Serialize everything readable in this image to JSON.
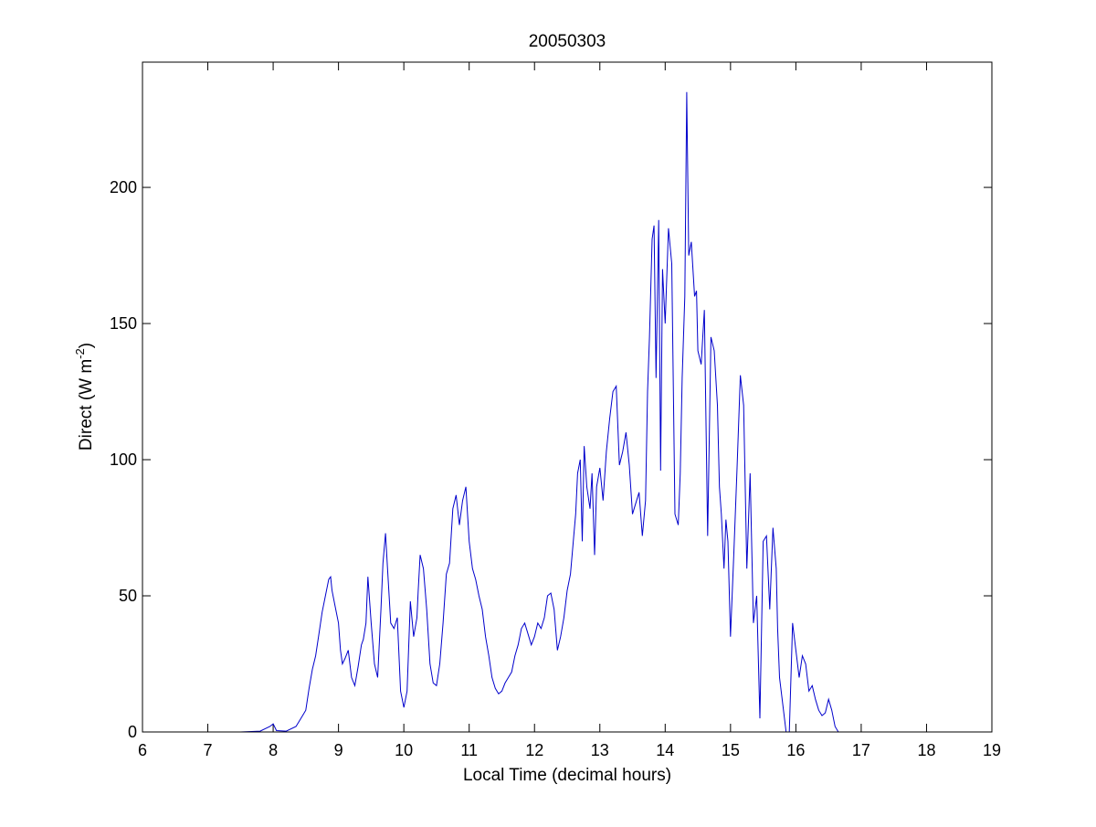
{
  "chart_data": {
    "type": "line",
    "title": "20050303",
    "xlabel": "Local Time (decimal hours)",
    "ylabel": {
      "prefix": "Direct (W m",
      "superscript": "-2",
      "suffix": ")"
    },
    "xlim": [
      6,
      19
    ],
    "ylim": [
      0,
      246
    ],
    "xticks": [
      6,
      7,
      8,
      9,
      10,
      11,
      12,
      13,
      14,
      15,
      16,
      17,
      18,
      19
    ],
    "yticks": [
      0,
      50,
      100,
      150,
      200
    ],
    "grid": false,
    "line_color": "#0000cc",
    "series": [
      {
        "x": [
          6.8,
          7.0,
          7.5,
          7.8,
          7.95,
          8.0,
          8.05,
          8.2,
          8.35,
          8.45,
          8.5,
          8.55,
          8.6,
          8.65,
          8.7,
          8.75,
          8.8,
          8.85,
          8.88,
          8.9,
          8.95,
          9.0,
          9.03,
          9.06,
          9.1,
          9.15,
          9.2,
          9.25,
          9.3,
          9.35,
          9.38,
          9.42,
          9.45,
          9.5,
          9.55,
          9.6,
          9.65,
          9.68,
          9.72,
          9.75,
          9.8,
          9.85,
          9.9,
          9.95,
          10.0,
          10.05,
          10.1,
          10.15,
          10.2,
          10.22,
          10.25,
          10.3,
          10.35,
          10.4,
          10.45,
          10.5,
          10.55,
          10.6,
          10.65,
          10.7,
          10.75,
          10.8,
          10.85,
          10.9,
          10.95,
          11.0,
          11.05,
          11.1,
          11.15,
          11.2,
          11.25,
          11.3,
          11.35,
          11.4,
          11.45,
          11.5,
          11.55,
          11.6,
          11.65,
          11.7,
          11.75,
          11.8,
          11.85,
          11.9,
          11.95,
          12.0,
          12.05,
          12.1,
          12.15,
          12.2,
          12.25,
          12.3,
          12.35,
          12.4,
          12.45,
          12.5,
          12.55,
          12.6,
          12.63,
          12.66,
          12.7,
          12.73,
          12.76,
          12.8,
          12.85,
          12.88,
          12.92,
          12.95,
          13.0,
          13.05,
          13.1,
          13.15,
          13.2,
          13.25,
          13.3,
          13.35,
          13.4,
          13.45,
          13.5,
          13.55,
          13.6,
          13.65,
          13.7,
          13.73,
          13.76,
          13.8,
          13.83,
          13.86,
          13.9,
          13.93,
          13.96,
          14.0,
          14.05,
          14.1,
          14.15,
          14.2,
          14.23,
          14.26,
          14.3,
          14.33,
          14.36,
          14.4,
          14.45,
          14.48,
          14.5,
          14.55,
          14.6,
          14.65,
          14.7,
          14.75,
          14.8,
          14.83,
          14.86,
          14.9,
          14.93,
          14.96,
          15.0,
          15.05,
          15.1,
          15.15,
          15.2,
          15.25,
          15.3,
          15.35,
          15.4,
          15.45,
          15.5,
          15.55,
          15.6,
          15.65,
          15.7,
          15.72,
          15.75,
          15.8,
          15.85,
          15.9,
          15.95,
          16.0,
          16.05,
          16.1,
          16.15,
          16.2,
          16.25,
          16.3,
          16.35,
          16.4,
          16.45,
          16.5,
          16.55,
          16.6,
          16.65,
          17.0,
          17.5,
          18.0
        ],
        "y": [
          0,
          0,
          0,
          0.3,
          2,
          3,
          0.5,
          0.3,
          2,
          6,
          8,
          16,
          23,
          28,
          36,
          44,
          50,
          56,
          57,
          52,
          46,
          40,
          30,
          25,
          27,
          30,
          20,
          17,
          24,
          32,
          34,
          40,
          57,
          40,
          25,
          20,
          45,
          62,
          73,
          60,
          40,
          38,
          42,
          15,
          9,
          15,
          48,
          35,
          42,
          52,
          65,
          60,
          45,
          25,
          18,
          17,
          25,
          40,
          58,
          62,
          82,
          87,
          76,
          85,
          90,
          70,
          60,
          56,
          50,
          45,
          35,
          28,
          20,
          16,
          14,
          15,
          18,
          20,
          22,
          28,
          32,
          38,
          40,
          36,
          32,
          35,
          40,
          38,
          42,
          50,
          51,
          45,
          30,
          35,
          42,
          52,
          58,
          72,
          80,
          95,
          100,
          70,
          105,
          90,
          82,
          95,
          65,
          90,
          97,
          85,
          103,
          115,
          125,
          127,
          98,
          103,
          110,
          98,
          80,
          84,
          88,
          72,
          85,
          125,
          145,
          181,
          186,
          130,
          188,
          96,
          170,
          150,
          185,
          172,
          80,
          76,
          95,
          130,
          160,
          235,
          175,
          180,
          160,
          162,
          140,
          135,
          155,
          72,
          145,
          140,
          120,
          90,
          80,
          60,
          78,
          70,
          35,
          65,
          97,
          131,
          120,
          60,
          95,
          40,
          50,
          5,
          70,
          72,
          45,
          75,
          60,
          38,
          20,
          10,
          0,
          0,
          40,
          30,
          20,
          28,
          25,
          15,
          17,
          12,
          8,
          6,
          7,
          12,
          8,
          2,
          0,
          0,
          0,
          0
        ]
      }
    ]
  }
}
